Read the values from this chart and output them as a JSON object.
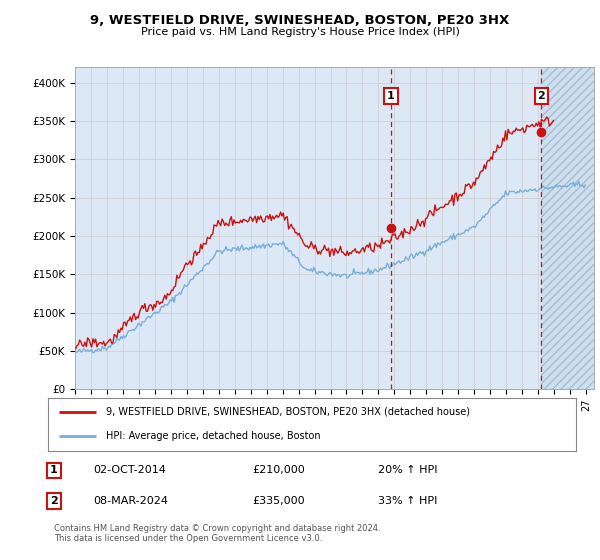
{
  "title": "9, WESTFIELD DRIVE, SWINESHEAD, BOSTON, PE20 3HX",
  "subtitle": "Price paid vs. HM Land Registry's House Price Index (HPI)",
  "y_min": 0,
  "y_max": 420000,
  "y_ticks": [
    0,
    50000,
    100000,
    150000,
    200000,
    250000,
    300000,
    350000,
    400000
  ],
  "y_tick_labels": [
    "£0",
    "£50K",
    "£100K",
    "£150K",
    "£200K",
    "£250K",
    "£300K",
    "£350K",
    "£400K"
  ],
  "hpi_color": "#7aaed6",
  "price_color": "#cc1111",
  "marker1_price": 210000,
  "marker1_text": "02-OCT-2014",
  "marker1_pct": "20% ↑ HPI",
  "marker2_price": 335000,
  "marker2_text": "08-MAR-2024",
  "marker2_pct": "33% ↑ HPI",
  "legend_line1": "9, WESTFIELD DRIVE, SWINESHEAD, BOSTON, PE20 3HX (detached house)",
  "legend_line2": "HPI: Average price, detached house, Boston",
  "footer": "Contains HM Land Registry data © Crown copyright and database right 2024.\nThis data is licensed under the Open Government Licence v3.0.",
  "x_tick_years": [
    1995,
    1996,
    1997,
    1998,
    1999,
    2000,
    2001,
    2002,
    2003,
    2004,
    2005,
    2006,
    2007,
    2008,
    2009,
    2010,
    2011,
    2012,
    2013,
    2014,
    2015,
    2016,
    2017,
    2018,
    2019,
    2020,
    2021,
    2022,
    2023,
    2024,
    2025,
    2026,
    2027
  ],
  "background_color": "#ffffff",
  "grid_color": "#cccccc",
  "plot_bg_color": "#dce8f5"
}
